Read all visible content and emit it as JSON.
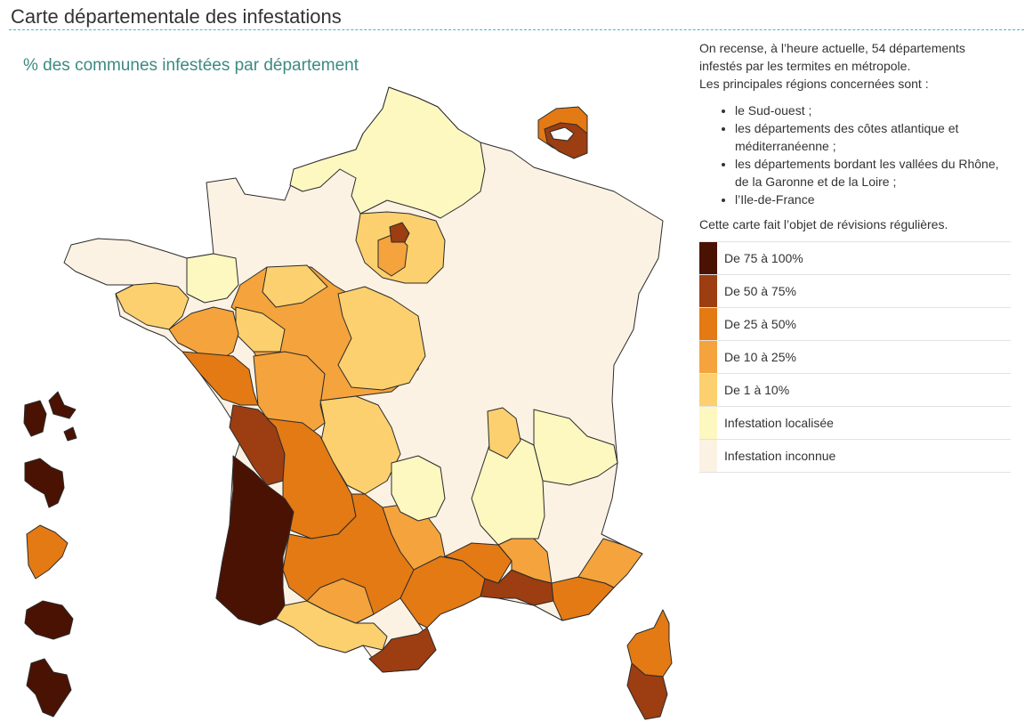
{
  "page_title": "Carte départementale des infestations",
  "map_title": "% des communes infestées par département",
  "intro_line1": "On recense, à l’heure actuelle, 54 départements",
  "intro_line2": "infestés par les termites en métropole.",
  "intro_line3": "Les principales régions concernées sont :",
  "regions": [
    "le Sud-ouest ;",
    "les départements des côtes atlantique et méditerranéenne ;",
    "les départements bordant les vallées du Rhône, de la Garonne et de la Loire ;",
    "l’Ile-de-France"
  ],
  "revision_note": "Cette carte fait l’objet de révisions régulières.",
  "legend": [
    {
      "label": "De 75 à 100%",
      "color": "#4a1203"
    },
    {
      "label": "De 50 à 75%",
      "color": "#9c3d12"
    },
    {
      "label": "De 25 à 50%",
      "color": "#e37a14"
    },
    {
      "label": "De 10 à 25%",
      "color": "#f4a33d"
    },
    {
      "label": "De 1 à 10%",
      "color": "#fcd06e"
    },
    {
      "label": "Infestation localisée",
      "color": "#fdf7c0"
    },
    {
      "label": "Infestation inconnue",
      "color": "#fcf2e3"
    }
  ],
  "map_colors": {
    "border": "#2b2b2b",
    "level_75_100": "#4a1203",
    "level_50_75": "#9c3d12",
    "level_25_50": "#e37a14",
    "level_10_25": "#f4a33d",
    "level_1_10": "#fcd06e",
    "localized": "#fdf7c0",
    "unknown": "#fcf2e3"
  }
}
